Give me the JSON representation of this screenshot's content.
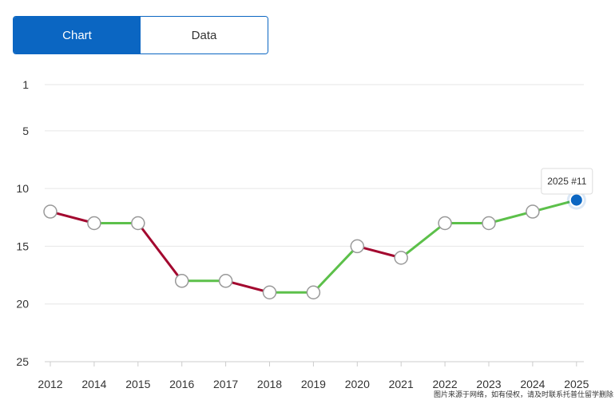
{
  "tabs": [
    {
      "label": "Chart",
      "active": true
    },
    {
      "label": "Data",
      "active": false
    }
  ],
  "colors": {
    "accent": "#0b66c2",
    "rising": "#5cc04a",
    "falling": "#a3082f",
    "gridline": "#e6e6e6"
  },
  "chart_data": {
    "type": "line",
    "title": "",
    "xlabel": "",
    "ylabel": "",
    "y_inverted": true,
    "ylim": [
      1,
      25
    ],
    "y_ticks": [
      1,
      5,
      10,
      15,
      20,
      25
    ],
    "x": [
      "2012",
      "2014",
      "2015",
      "2016",
      "2017",
      "2018",
      "2019",
      "2020",
      "2021",
      "2022",
      "2023",
      "2024",
      "2025"
    ],
    "series": [
      {
        "values": [
          12,
          13,
          13,
          18,
          18,
          19,
          19,
          15,
          16,
          13,
          13,
          12,
          11
        ]
      }
    ],
    "grid": true,
    "tooltip": {
      "year": "2025",
      "rank": "#11"
    }
  },
  "watermark": "图片来源于网络，如有侵权，请及时联系托普仕留学删除"
}
